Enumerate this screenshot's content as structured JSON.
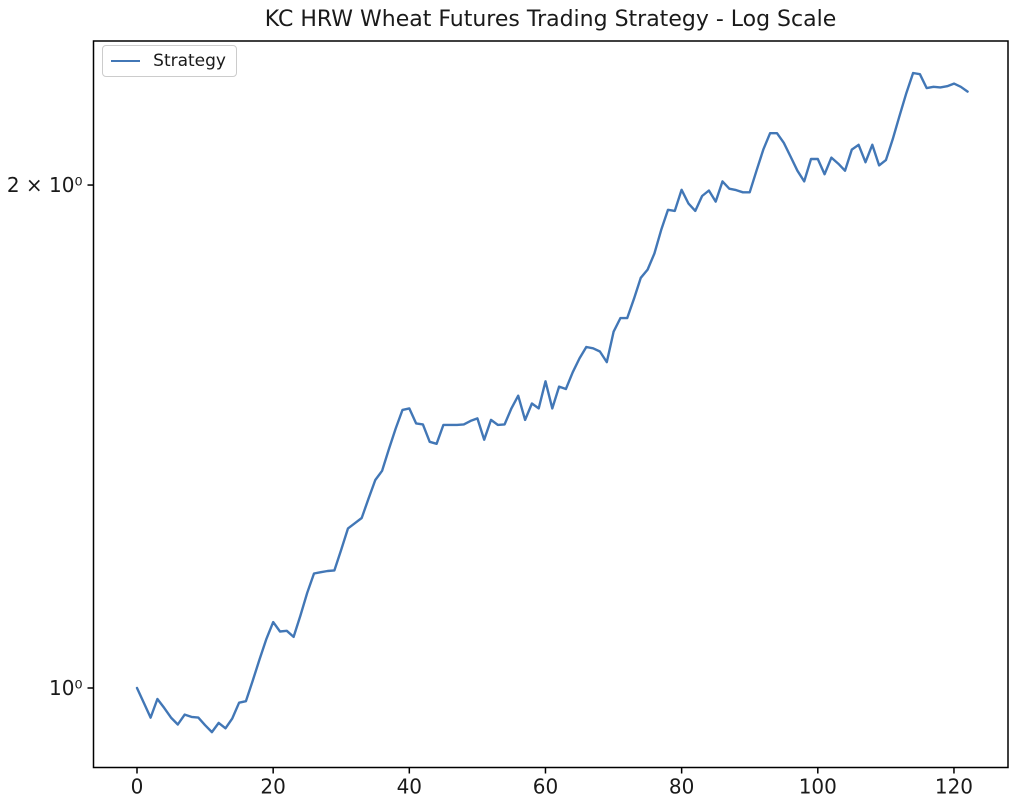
{
  "figure": {
    "background": "#ffffff"
  },
  "chart_data": {
    "type": "line",
    "title": "KC HRW Wheat Futures Trading Strategy - Log Scale",
    "xlabel": "",
    "ylabel": "",
    "yscale": "log",
    "grid": false,
    "xlim": [
      -6.4,
      128.2
    ],
    "ylim": [
      0.9,
      2.44
    ],
    "xticks": [
      0,
      20,
      40,
      60,
      80,
      100,
      120
    ],
    "yticks": [
      {
        "value": 1,
        "label": "10⁰"
      },
      {
        "value": 2,
        "label": "2 × 10⁰"
      }
    ],
    "frame_color": "#000000",
    "text_color": "#1a1a1a",
    "legend": {
      "position": "upper left",
      "entries": [
        {
          "label": "Strategy",
          "color": "#4277b6"
        }
      ]
    },
    "series": [
      {
        "name": "Strategy",
        "color": "#4277b6",
        "x": [
          0,
          1,
          2,
          3,
          4,
          5,
          6,
          7,
          8,
          9,
          10,
          11,
          12,
          13,
          14,
          15,
          16,
          17,
          18,
          19,
          20,
          21,
          22,
          23,
          24,
          25,
          26,
          27,
          28,
          29,
          30,
          31,
          32,
          33,
          34,
          35,
          36,
          37,
          38,
          39,
          40,
          41,
          42,
          43,
          44,
          45,
          46,
          47,
          48,
          49,
          50,
          51,
          52,
          53,
          54,
          55,
          56,
          57,
          58,
          59,
          60,
          61,
          62,
          63,
          64,
          65,
          66,
          67,
          68,
          69,
          70,
          71,
          72,
          73,
          74,
          75,
          76,
          77,
          78,
          79,
          80,
          81,
          82,
          83,
          84,
          85,
          86,
          87,
          88,
          89,
          90,
          91,
          92,
          93,
          94,
          95,
          96,
          97,
          98,
          99,
          100,
          101,
          102,
          103,
          104,
          105,
          106,
          107,
          108,
          109,
          110,
          111,
          112,
          113,
          114,
          115,
          116,
          117,
          118,
          119,
          120,
          121,
          122
        ],
        "values": [
          1.0,
          0.98,
          0.96,
          0.985,
          0.973,
          0.96,
          0.951,
          0.964,
          0.961,
          0.96,
          0.95,
          0.941,
          0.953,
          0.946,
          0.959,
          0.98,
          0.982,
          1.01,
          1.04,
          1.07,
          1.095,
          1.081,
          1.082,
          1.073,
          1.105,
          1.14,
          1.171,
          1.173,
          1.175,
          1.176,
          1.21,
          1.246,
          1.255,
          1.264,
          1.298,
          1.332,
          1.349,
          1.39,
          1.43,
          1.467,
          1.47,
          1.44,
          1.438,
          1.404,
          1.4,
          1.437,
          1.437,
          1.437,
          1.438,
          1.445,
          1.45,
          1.408,
          1.447,
          1.437,
          1.438,
          1.47,
          1.496,
          1.447,
          1.48,
          1.47,
          1.526,
          1.47,
          1.515,
          1.51,
          1.545,
          1.575,
          1.6,
          1.597,
          1.59,
          1.567,
          1.634,
          1.665,
          1.665,
          1.71,
          1.76,
          1.78,
          1.82,
          1.88,
          1.933,
          1.93,
          1.987,
          1.95,
          1.93,
          1.97,
          1.985,
          1.955,
          2.01,
          1.99,
          1.986,
          1.98,
          1.98,
          2.04,
          2.1,
          2.148,
          2.148,
          2.12,
          2.08,
          2.04,
          2.01,
          2.073,
          2.073,
          2.03,
          2.077,
          2.06,
          2.04,
          2.1,
          2.114,
          2.064,
          2.114,
          2.055,
          2.07,
          2.13,
          2.2,
          2.27,
          2.334,
          2.33,
          2.286,
          2.29,
          2.288,
          2.292,
          2.3,
          2.29,
          2.275
        ]
      }
    ]
  }
}
